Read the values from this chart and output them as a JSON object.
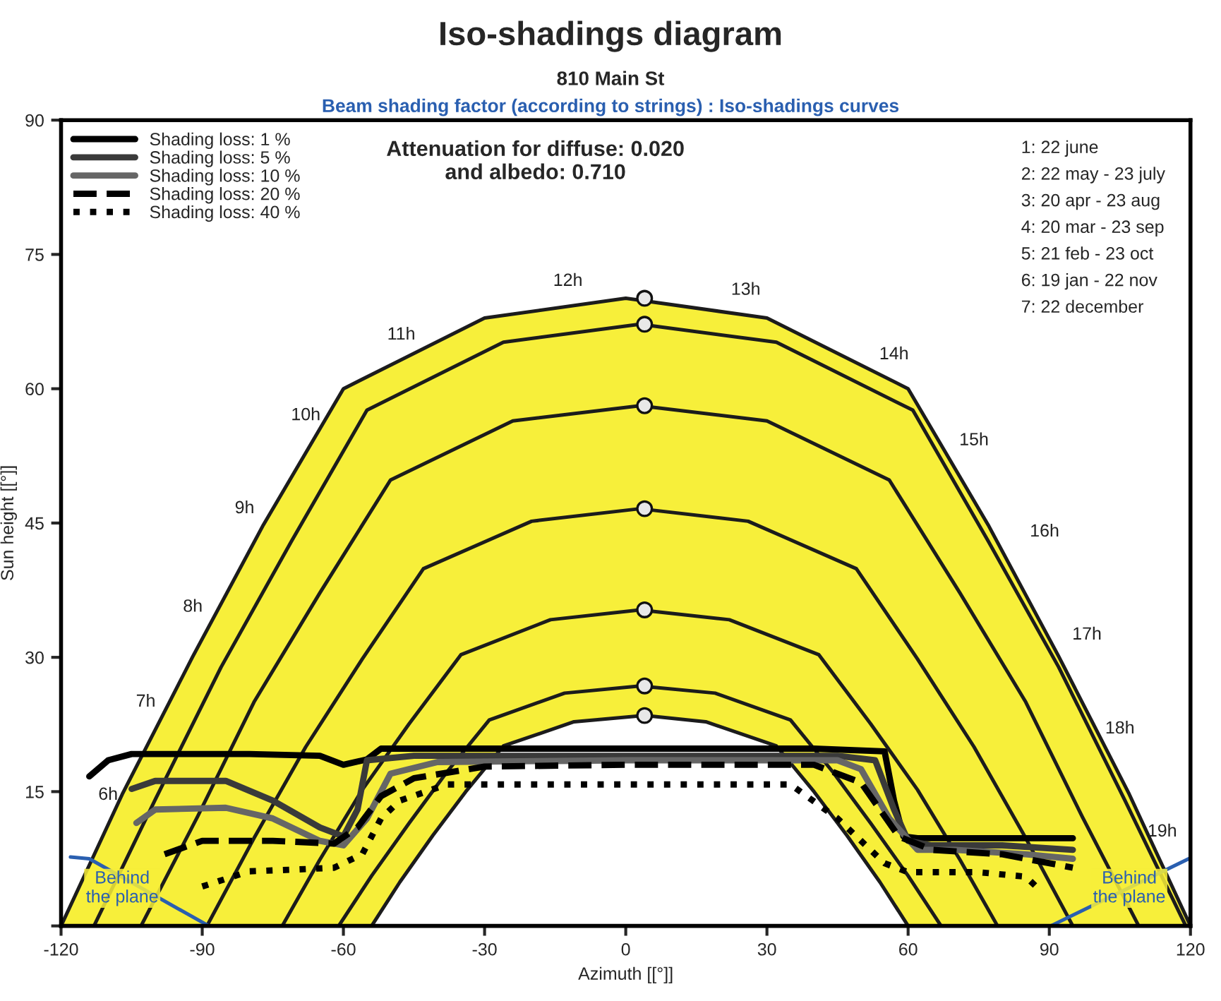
{
  "chart_data": {
    "type": "line",
    "title": "Iso-shadings diagram",
    "subtitle": "810 Main St",
    "xlabel": "Azimuth [[°]]",
    "ylabel": "Sun height [[°]]",
    "xlim": [
      -120,
      120
    ],
    "xticks": [
      -120,
      -90,
      -60,
      -30,
      0,
      30,
      60,
      90,
      120
    ],
    "ylim": [
      0,
      90
    ],
    "yticks": [
      {
        "value": 0,
        "label": null
      },
      15,
      30,
      45,
      60,
      75,
      90
    ],
    "grid": false,
    "legend": "top left",
    "annotations": [
      "Beam shading factor (according to strings) : Iso-shadings curves",
      "Attenuation for diffuse: 0.020\nand albedo: 0.710",
      "1: 22 june",
      "2: 22 may - 23 july",
      "3: 20 apr - 23 aug",
      "4: 20 mar - 23 sep",
      "5: 21 feb - 23 oct",
      "6: 19 jan - 22 nov",
      "7: 22 december",
      "6h",
      "7h",
      "8h",
      "9h",
      "10h",
      "11h",
      "12h",
      "13h",
      "14h",
      "15h",
      "16h",
      "17h",
      "18h",
      "19h",
      "Behind\nthe plane",
      "Behind\nthe plane"
    ],
    "series": [
      {
        "type": "area",
        "color": "#f7ef3a",
        "x": [
          -120,
          -107,
          -92,
          -77,
          -60,
          -30,
          0,
          30,
          60,
          77,
          92,
          107,
          120
        ],
        "values": [
          0,
          14.7,
          30.1,
          44.8,
          60.0,
          67.9,
          70.1,
          67.9,
          60.0,
          44.8,
          30.1,
          14.7,
          0
        ]
      },
      {
        "type": "area",
        "color": "#ffffff",
        "x": [
          -54,
          -48,
          -41,
          -34,
          -26,
          -11,
          4,
          17,
          32,
          40,
          47,
          54,
          60
        ],
        "values": [
          0,
          4.9,
          10.1,
          15.0,
          20.1,
          22.8,
          23.5,
          22.8,
          20.1,
          15.0,
          10.1,
          4.9,
          0
        ]
      },
      {
        "type": "line",
        "color": "#1c1c1c",
        "x": [
          -113,
          -100,
          -86,
          -71,
          -55,
          -26,
          3,
          32,
          61,
          77,
          92,
          106,
          119
        ],
        "values": [
          0,
          14.1,
          28.9,
          43.0,
          57.6,
          65.2,
          67.2,
          65.2,
          57.6,
          43.0,
          28.9,
          14.1,
          0
        ]
      },
      {
        "type": "line",
        "color": "#1c1c1c",
        "x": [
          -103,
          -91,
          -79,
          -65,
          -50,
          -24,
          3,
          30,
          56,
          71,
          85,
          97,
          109
        ],
        "values": [
          0,
          12.2,
          25.0,
          37.2,
          49.8,
          56.4,
          58.1,
          56.4,
          49.8,
          37.2,
          25.0,
          12.2,
          0
        ]
      },
      {
        "type": "line",
        "color": "#1c1c1c",
        "x": [
          -89,
          -79,
          -68,
          -56,
          -43,
          -20,
          3,
          26,
          49,
          62,
          74,
          85,
          95
        ],
        "values": [
          0,
          9.8,
          20.0,
          29.8,
          39.9,
          45.2,
          46.6,
          45.2,
          39.9,
          29.8,
          20.0,
          9.8,
          0
        ]
      },
      {
        "type": "line",
        "color": "#1c1c1c",
        "x": [
          -73,
          -65,
          -56,
          -46,
          -35,
          -16,
          3,
          22,
          41,
          52,
          62,
          71,
          79
        ],
        "values": [
          0,
          7.4,
          15.2,
          22.6,
          30.3,
          34.2,
          35.3,
          34.2,
          30.3,
          22.6,
          15.2,
          7.4,
          0
        ]
      },
      {
        "type": "line",
        "color": "#1c1c1c",
        "x": [
          -61,
          -54,
          -46,
          -38,
          -29,
          -13,
          3,
          19,
          35,
          44,
          52,
          60,
          67
        ],
        "values": [
          0,
          5.6,
          11.5,
          17.2,
          23.0,
          26.0,
          26.8,
          26.0,
          23.0,
          17.2,
          11.5,
          5.6,
          0
        ]
      },
      {
        "type": "scatter",
        "color": "#e8e8e8",
        "marker": "circle",
        "x": [
          4,
          4,
          4,
          4,
          4,
          4,
          4
        ],
        "values": [
          70.1,
          67.2,
          58.1,
          46.6,
          35.3,
          26.8,
          23.5
        ]
      },
      {
        "type": "line",
        "color": "#2a5fb0",
        "x": [
          -118,
          -114,
          -88.6
        ],
        "values": [
          7.7,
          7.5,
          0
        ]
      },
      {
        "type": "line",
        "color": "#2a5fb0",
        "x": [
          90.3,
          120
        ],
        "values": [
          0,
          7.6
        ]
      },
      {
        "type": "line",
        "name": "Shading loss: 1 %",
        "color": "#000000",
        "line_style": "solid",
        "x": [
          -114,
          -110,
          -105,
          -80,
          -65,
          -60,
          -55,
          -52,
          -40,
          0,
          40,
          55,
          57,
          59,
          62,
          80,
          95
        ],
        "values": [
          16.7,
          18.5,
          19.2,
          19.2,
          19,
          18,
          18.6,
          19.8,
          19.8,
          19.8,
          19.8,
          19.5,
          14,
          10,
          9.8,
          9.8,
          9.8
        ]
      },
      {
        "type": "line",
        "name": "Shading loss: 5 %",
        "color": "#3a3a3a",
        "line_style": "solid",
        "x": [
          -105,
          -100,
          -85,
          -75,
          -65,
          -60,
          -57,
          -55,
          -45,
          0,
          45,
          53,
          57,
          60,
          65,
          80,
          95
        ],
        "values": [
          15.3,
          16.2,
          16.2,
          14,
          11,
          10,
          13,
          18.5,
          19,
          19,
          19,
          18.5,
          13,
          9.5,
          9,
          9,
          8.5
        ]
      },
      {
        "type": "line",
        "name": "Shading loss: 10 %",
        "color": "#666666",
        "line_style": "solid",
        "x": [
          -104,
          -100,
          -85,
          -75,
          -65,
          -60,
          -55,
          -50,
          -40,
          0,
          45,
          50,
          56,
          62,
          70,
          85,
          95
        ],
        "values": [
          11.5,
          13,
          13.2,
          12,
          9.5,
          9,
          12,
          17,
          18.3,
          18.5,
          18.5,
          17.5,
          12,
          8.5,
          8.5,
          8,
          7.5
        ]
      },
      {
        "type": "line",
        "name": "Shading loss: 20 %",
        "color": "#000000",
        "line_style": "dashed",
        "x": [
          -98,
          -90,
          -75,
          -62,
          -57,
          -52,
          -45,
          -30,
          0,
          40,
          50,
          58,
          65,
          80,
          95
        ],
        "values": [
          8,
          9.5,
          9.5,
          9.2,
          11,
          14.5,
          16.5,
          17.8,
          18,
          18,
          16,
          10,
          8.5,
          8,
          6.5
        ]
      },
      {
        "type": "line",
        "name": "Shading loss: 40 %",
        "color": "#000000",
        "line_style": "dotted",
        "x": [
          -90,
          -80,
          -70,
          -62,
          -56,
          -52,
          -48,
          -38,
          0,
          35,
          45,
          55,
          60,
          75,
          85,
          88
        ],
        "values": [
          4.4,
          6.1,
          6.3,
          6.5,
          8,
          12,
          14,
          15.8,
          15.8,
          15.8,
          12,
          7,
          6,
          6,
          5.5,
          4
        ]
      }
    ]
  }
}
